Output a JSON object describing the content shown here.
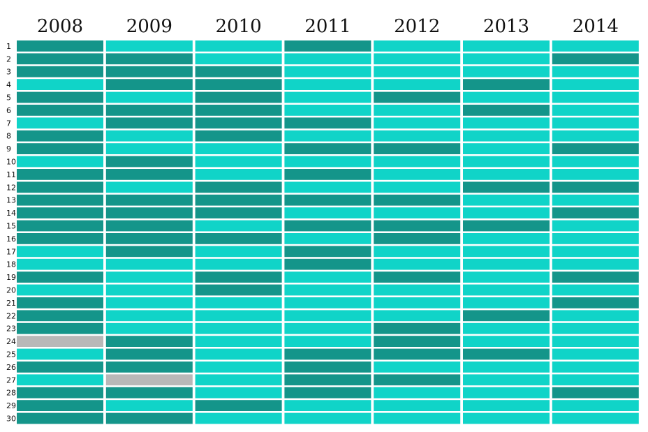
{
  "chart_data": {
    "type": "heatmap",
    "title": "",
    "columns": [
      "2008",
      "2009",
      "2010",
      "2011",
      "2012",
      "2013",
      "2014"
    ],
    "rows": [
      "1",
      "2",
      "3",
      "4",
      "5",
      "6",
      "7",
      "8",
      "9",
      "10",
      "11",
      "12",
      "13",
      "14",
      "15",
      "16",
      "17",
      "18",
      "19",
      "20",
      "21",
      "22",
      "23",
      "24",
      "25",
      "26",
      "27",
      "28",
      "29",
      "30"
    ],
    "levels": {
      "D": "dark",
      "L": "light",
      "G": "missing"
    },
    "colors": {
      "D": "#14958a",
      "L": "#10d4c8",
      "G": "#b8b8b8"
    },
    "cells": [
      [
        "D",
        "L",
        "L",
        "D",
        "L",
        "L",
        "L"
      ],
      [
        "D",
        "D",
        "L",
        "L",
        "L",
        "L",
        "D"
      ],
      [
        "D",
        "D",
        "D",
        "L",
        "L",
        "L",
        "L"
      ],
      [
        "L",
        "D",
        "D",
        "L",
        "L",
        "D",
        "L"
      ],
      [
        "D",
        "L",
        "D",
        "L",
        "D",
        "L",
        "L"
      ],
      [
        "D",
        "D",
        "D",
        "L",
        "L",
        "D",
        "L"
      ],
      [
        "L",
        "D",
        "D",
        "D",
        "L",
        "L",
        "L"
      ],
      [
        "D",
        "L",
        "D",
        "L",
        "L",
        "L",
        "L"
      ],
      [
        "D",
        "L",
        "L",
        "D",
        "D",
        "L",
        "D"
      ],
      [
        "L",
        "D",
        "L",
        "L",
        "L",
        "L",
        "L"
      ],
      [
        "D",
        "D",
        "L",
        "D",
        "L",
        "L",
        "L"
      ],
      [
        "D",
        "L",
        "D",
        "L",
        "L",
        "D",
        "D"
      ],
      [
        "D",
        "D",
        "D",
        "D",
        "D",
        "L",
        "L"
      ],
      [
        "D",
        "D",
        "D",
        "L",
        "L",
        "L",
        "D"
      ],
      [
        "D",
        "D",
        "L",
        "D",
        "D",
        "D",
        "L"
      ],
      [
        "D",
        "D",
        "D",
        "L",
        "D",
        "L",
        "L"
      ],
      [
        "L",
        "D",
        "L",
        "D",
        "L",
        "L",
        "L"
      ],
      [
        "L",
        "L",
        "L",
        "D",
        "L",
        "L",
        "L"
      ],
      [
        "D",
        "L",
        "D",
        "L",
        "D",
        "L",
        "D"
      ],
      [
        "L",
        "L",
        "D",
        "L",
        "L",
        "L",
        "L"
      ],
      [
        "D",
        "L",
        "L",
        "L",
        "L",
        "L",
        "D"
      ],
      [
        "D",
        "L",
        "L",
        "L",
        "L",
        "D",
        "L"
      ],
      [
        "D",
        "L",
        "L",
        "L",
        "D",
        "L",
        "L"
      ],
      [
        "G",
        "D",
        "L",
        "L",
        "D",
        "L",
        "L"
      ],
      [
        "L",
        "D",
        "L",
        "D",
        "D",
        "D",
        "L"
      ],
      [
        "D",
        "D",
        "L",
        "D",
        "L",
        "L",
        "L"
      ],
      [
        "L",
        "G",
        "L",
        "D",
        "D",
        "L",
        "L"
      ],
      [
        "D",
        "D",
        "L",
        "D",
        "L",
        "L",
        "D"
      ],
      [
        "D",
        "L",
        "D",
        "L",
        "L",
        "L",
        "L"
      ],
      [
        "D",
        "D",
        "L",
        "L",
        "L",
        "L",
        "L"
      ]
    ]
  }
}
